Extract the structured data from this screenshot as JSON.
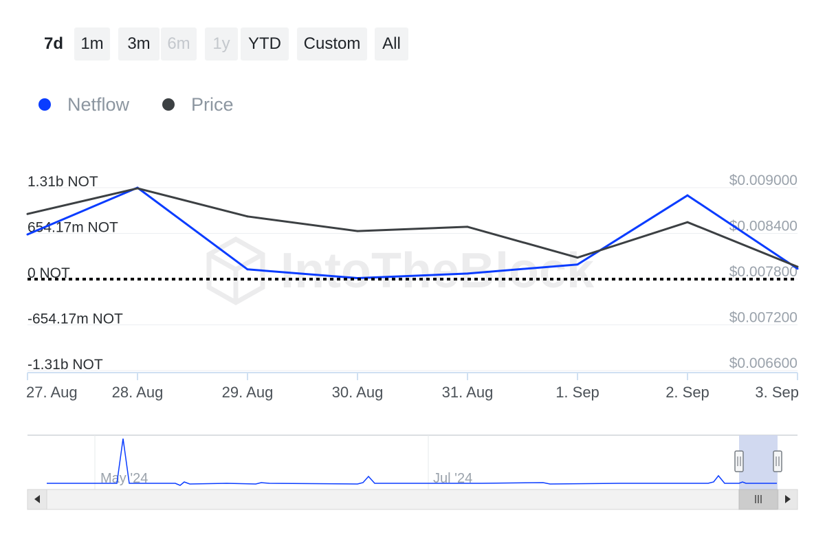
{
  "range_selector": {
    "buttons": [
      {
        "label": "7d",
        "state": "active"
      },
      {
        "label": "1m",
        "state": "normal"
      },
      {
        "label": "3m",
        "state": "normal"
      },
      {
        "label": "6m",
        "state": "disabled"
      },
      {
        "label": "1y",
        "state": "disabled"
      },
      {
        "label": "YTD",
        "state": "normal"
      },
      {
        "label": "Custom",
        "state": "normal"
      },
      {
        "label": "All",
        "state": "normal"
      }
    ]
  },
  "legend": {
    "items": [
      {
        "label": "Netflow",
        "color": "#0a3cff"
      },
      {
        "label": "Price",
        "color": "#3c4043"
      }
    ]
  },
  "watermark": {
    "text": "IntoTheBlock"
  },
  "chart_data": {
    "type": "line",
    "x": [
      "27. Aug",
      "28. Aug",
      "29. Aug",
      "30. Aug",
      "31. Aug",
      "1. Sep",
      "2. Sep",
      "3. Sep"
    ],
    "series": [
      {
        "name": "Netflow",
        "axis": "left",
        "unit": "NOT",
        "color": "#0a3cff",
        "values": [
          640000000,
          1310000000,
          140000000,
          15000000,
          80000000,
          210000000,
          1200000000,
          150000000
        ]
      },
      {
        "name": "Price",
        "axis": "right",
        "unit": "USD",
        "color": "#3c4043",
        "values": [
          0.008655,
          0.008992,
          0.008623,
          0.008431,
          0.008487,
          0.008082,
          0.008547,
          0.007962
        ]
      }
    ],
    "left_axis": {
      "ticks": [
        "1.31b NOT",
        "654.17m NOT",
        "0 NOT",
        "-654.17m NOT",
        "-1.31b NOT"
      ],
      "range": [
        -1310000000,
        1310000000
      ]
    },
    "right_axis": {
      "ticks": [
        "$0.009000",
        "$0.008400",
        "$0.007800",
        "$0.007200",
        "$0.006600"
      ],
      "range": [
        0.0066,
        0.009
      ]
    },
    "zero_line": "dotted",
    "grid": true,
    "legend_position": "top-left"
  },
  "navigator": {
    "labels": [
      "May '24",
      "Jul '24"
    ],
    "scroll_left_icon": "triangle-left",
    "scroll_right_icon": "triangle-right",
    "grip_icon": "grip-lines"
  }
}
